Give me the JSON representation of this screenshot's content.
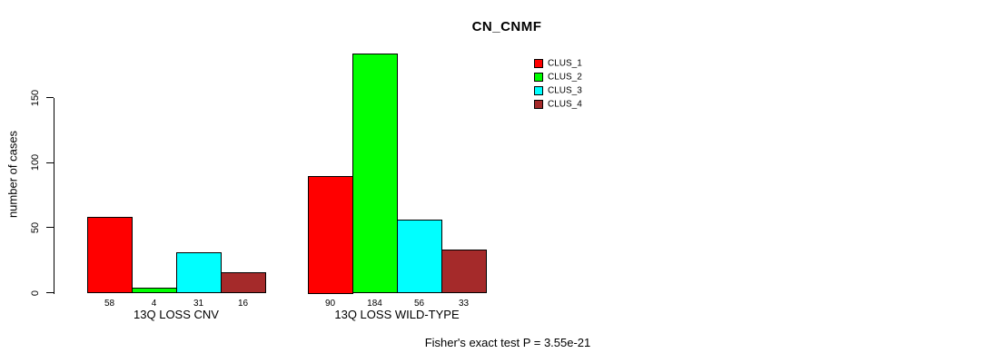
{
  "title": "CN_CNMF",
  "y_axis": {
    "label": "number of cases",
    "ticks": [
      0,
      50,
      100,
      150
    ]
  },
  "footer": "Fisher's exact test P = 3.55e-21",
  "legend": {
    "items": [
      {
        "label": "CLUS_1",
        "color": "#FF0000"
      },
      {
        "label": "CLUS_2",
        "color": "#00FF00"
      },
      {
        "label": "CLUS_3",
        "color": "#00FFFF"
      },
      {
        "label": "CLUS_4",
        "color": "#A52A2A"
      }
    ]
  },
  "chart_data": {
    "type": "bar",
    "title": "CN_CNMF",
    "ylabel": "number of cases",
    "xlabel": "",
    "ylim": [
      0,
      184
    ],
    "yticks": [
      0,
      50,
      100,
      150
    ],
    "grid": false,
    "legend_position": "top-right",
    "bar_borders": "#000000",
    "categories": [
      "13Q LOSS CNV",
      "13Q LOSS WILD-TYPE"
    ],
    "series": [
      {
        "name": "CLUS_1",
        "color": "#FF0000",
        "values": [
          58,
          90
        ]
      },
      {
        "name": "CLUS_2",
        "color": "#00FF00",
        "values": [
          4,
          184
        ]
      },
      {
        "name": "CLUS_3",
        "color": "#00FFFF",
        "values": [
          31,
          56
        ]
      },
      {
        "name": "CLUS_4",
        "color": "#A52A2A",
        "values": [
          16,
          33
        ]
      }
    ],
    "bar_value_labels": [
      [
        58,
        4,
        31,
        16
      ],
      [
        90,
        184,
        56,
        33
      ]
    ],
    "annotation": "Fisher's exact test P = 3.55e-21"
  }
}
